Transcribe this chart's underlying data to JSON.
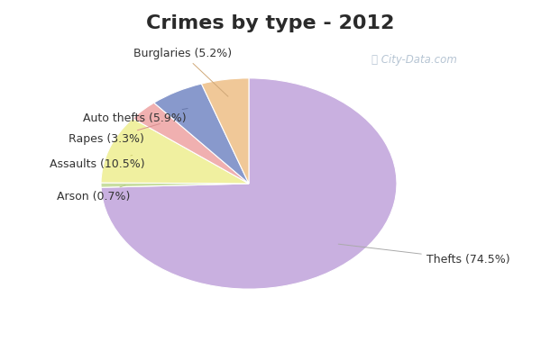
{
  "title": "Crimes by type - 2012",
  "title_fontsize": 16,
  "title_color": "#2a2a2a",
  "title_bg": "#00e5ff",
  "chart_bg_top": "#c8e8d0",
  "chart_bg_bottom": "#e8f4f8",
  "labels": [
    "Thefts",
    "Arson",
    "Assaults",
    "Rapes",
    "Auto thefts",
    "Burglaries"
  ],
  "values": [
    74.5,
    0.7,
    10.5,
    3.3,
    5.9,
    5.2
  ],
  "colors": [
    "#c9b0e0",
    "#c8dea0",
    "#f0f0a0",
    "#f0b0b0",
    "#8899cc",
    "#f0c898"
  ],
  "label_texts": [
    "Thefts (74.5%)",
    "Arson (0.7%)",
    "Assaults (10.5%)",
    "Rapes (3.3%)",
    "Auto thefts (5.9%)",
    "Burglaries (5.2%)"
  ],
  "label_colors": [
    "#aaaaaa",
    "#c8dea0",
    "#f0f0a0",
    "#f0b0b0",
    "#8899cc",
    "#f0c898"
  ],
  "label_fontsize": 9,
  "watermark": "City-Data.com",
  "watermark_color": "#aabbcc"
}
